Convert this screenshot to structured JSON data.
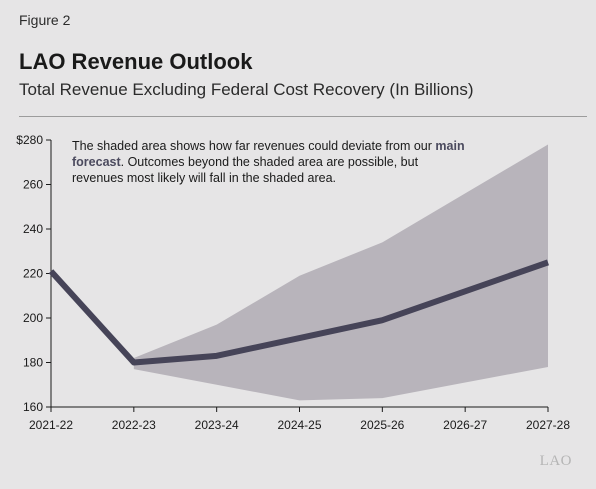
{
  "figure_label": "Figure 2",
  "title": "LAO Revenue Outlook",
  "subtitle": "Total Revenue Excluding Federal Cost Recovery (In Billions)",
  "note": {
    "part1": "The shaded area shows how far revenues could deviate from our ",
    "highlight": "main forecast",
    "part2": ". Outcomes beyond the shaded area are possible, but revenues most likely will fall in the shaded area."
  },
  "logo_text": "LAO",
  "colors": {
    "background": "#e6e5e6",
    "band": "#b8b4bb",
    "line": "#464458",
    "axis": "#1a1a1a"
  },
  "chart_data": {
    "type": "line",
    "categories": [
      "2021-22",
      "2022-23",
      "2023-24",
      "2024-25",
      "2025-26",
      "2026-27",
      "2027-28"
    ],
    "series": [
      {
        "role": "main forecast",
        "values": [
          221,
          180,
          183,
          191,
          199,
          212,
          225
        ]
      }
    ],
    "band": {
      "start_index": 1,
      "upper": [
        182,
        197,
        219,
        234,
        256,
        278
      ],
      "lower": [
        177,
        170,
        163,
        164,
        171,
        178
      ]
    },
    "ylim": [
      160,
      280
    ],
    "yticks": [
      160,
      180,
      200,
      220,
      240,
      260,
      280
    ],
    "ytick_labels": [
      "160",
      "180",
      "200",
      "220",
      "240",
      "260",
      "$280"
    ],
    "grid": false
  }
}
